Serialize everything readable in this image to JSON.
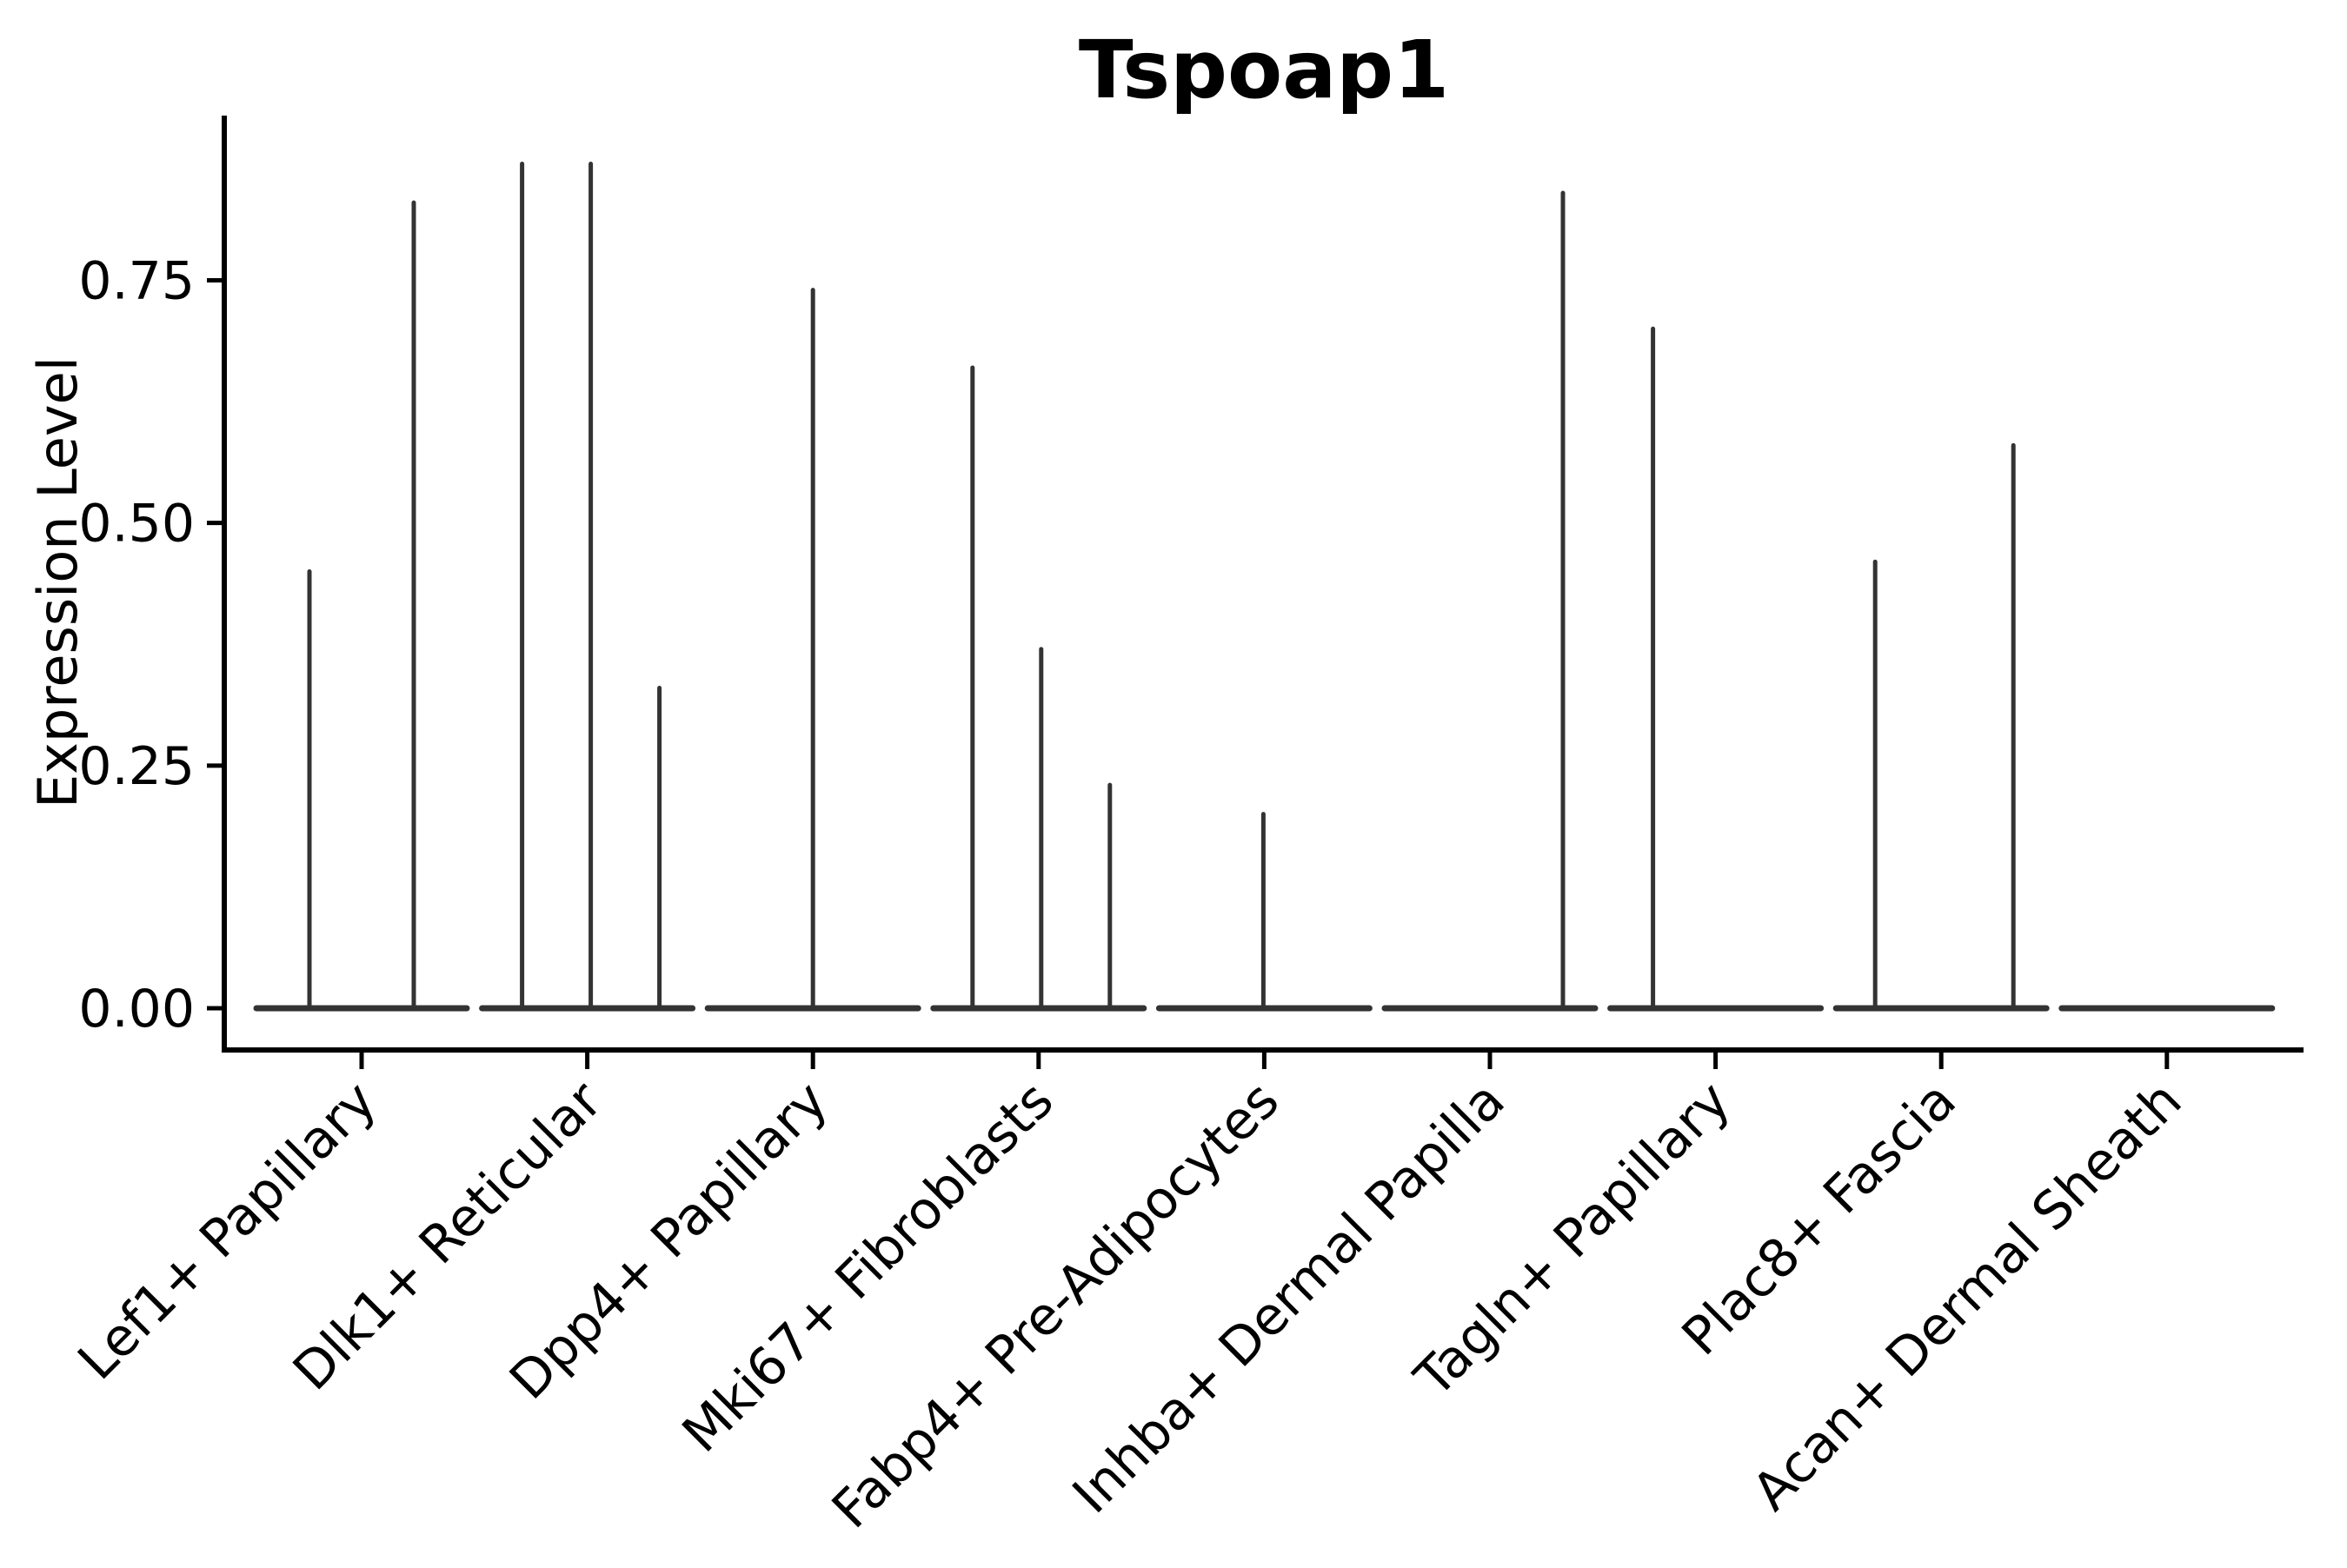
{
  "chart_data": {
    "type": "violin",
    "title": "Tspoap1",
    "ylabel": "Expression Level",
    "xlabel": "",
    "ylim": [
      0,
      0.92
    ],
    "yticks": [
      0.0,
      0.25,
      0.5,
      0.75
    ],
    "ytick_labels": [
      "0.00",
      "0.25",
      "0.50",
      "0.75"
    ],
    "grid": false,
    "legend": "none",
    "violin_color": "#333333",
    "axis_color": "#000000",
    "background_color": "#ffffff",
    "baseline_value": 0.0,
    "categories": [
      {
        "label": "Lef1+ Papillary",
        "spikes": [
          {
            "x_offset": -60,
            "value": 0.45
          },
          {
            "x_offset": 60,
            "value": 0.83
          }
        ]
      },
      {
        "label": "Dlk1+ Reticular",
        "spikes": [
          {
            "x_offset": -75,
            "value": 0.87
          },
          {
            "x_offset": 4,
            "value": 0.87
          },
          {
            "x_offset": 83,
            "value": 0.33
          }
        ]
      },
      {
        "label": "Dpp4+ Papillary",
        "spikes": [
          {
            "x_offset": 0,
            "value": 0.74
          }
        ]
      },
      {
        "label": "Mki67+ Fibroblasts",
        "spikes": [
          {
            "x_offset": -76,
            "value": 0.66
          },
          {
            "x_offset": 3,
            "value": 0.37
          },
          {
            "x_offset": 82,
            "value": 0.23
          }
        ]
      },
      {
        "label": "Fabp4+ Pre-Adipocytes",
        "spikes": [
          {
            "x_offset": -1,
            "value": 0.2
          }
        ]
      },
      {
        "label": "Inhba+ Dermal Papilla",
        "spikes": [
          {
            "x_offset": 84,
            "value": 0.84
          }
        ]
      },
      {
        "label": "Tagln+ Papillary",
        "spikes": [
          {
            "x_offset": -72,
            "value": 0.7
          }
        ]
      },
      {
        "label": "Plac8+ Fascia",
        "spikes": [
          {
            "x_offset": -76,
            "value": 0.46
          },
          {
            "x_offset": 83,
            "value": 0.58
          }
        ]
      },
      {
        "label": "Acan+ Dermal Sheath",
        "spikes": []
      }
    ]
  }
}
